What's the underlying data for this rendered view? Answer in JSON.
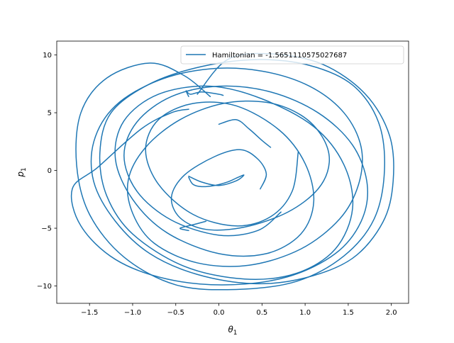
{
  "chart_data": {
    "type": "line",
    "title": "",
    "xlabel": "θ",
    "xlabel_sub": "1",
    "ylabel": "p",
    "ylabel_sub": "1",
    "xlim": [
      -1.88,
      2.2
    ],
    "ylim": [
      -11.5,
      11.2
    ],
    "xticks": [
      -1.5,
      -1.0,
      -0.5,
      0.0,
      0.5,
      1.0,
      1.5,
      2.0
    ],
    "xtick_labels": [
      "−1.5",
      "−1.0",
      "−0.5",
      "0.0",
      "0.5",
      "1.0",
      "1.5",
      "2.0"
    ],
    "yticks": [
      -10,
      -5,
      0,
      5,
      10
    ],
    "ytick_labels": [
      "−10",
      "−5",
      "0",
      "5",
      "10"
    ],
    "grid": false,
    "legend_position": "top-right",
    "series": [
      {
        "name": "Hamiltonian = -1.5651110575027687",
        "color": "#1f77b4",
        "segments": [
          {
            "x": [
              -0.35,
              -0.3,
              -0.2,
              -0.05,
              0.1,
              0.22,
              0.29,
              0.2,
              0.0,
              -0.2,
              -0.35
            ],
            "y": [
              -0.6,
              -1.2,
              -1.4,
              -1.3,
              -1.0,
              -0.6,
              -0.4,
              -0.9,
              -1.3,
              -1.0,
              -0.5
            ]
          },
          {
            "x": [
              0.0,
              0.2,
              0.35,
              0.5,
              0.6
            ],
            "y": [
              4.0,
              4.4,
              3.6,
              2.6,
              2.0
            ]
          },
          {
            "x": [
              -0.1,
              -0.4,
              -0.8,
              -1.3,
              -1.6,
              -1.65,
              -1.5,
              -1.1,
              -0.5,
              0.2,
              0.9,
              1.45,
              1.8,
              1.92,
              1.85,
              1.55,
              1.05,
              0.45,
              -0.2,
              -0.8,
              -1.25,
              -1.38,
              -1.3,
              -1.0,
              -0.4,
              0.3,
              0.9,
              1.35,
              1.55,
              1.45,
              1.1,
              0.5,
              -0.1,
              -0.7,
              -1.1,
              -1.2,
              -1.0,
              -0.6,
              0.0,
              0.55,
              0.95,
              1.1,
              1.0,
              0.7,
              0.2,
              -0.3,
              -0.7,
              -0.85,
              -0.7,
              -0.3,
              0.2,
              0.6,
              0.85,
              0.92
            ],
            "y": [
              6.4,
              8.2,
              9.3,
              8.0,
              5.0,
              0.5,
              -3.8,
              -7.5,
              -9.9,
              -10.3,
              -9.6,
              -7.4,
              -4.2,
              0.0,
              4.2,
              7.4,
              9.1,
              9.6,
              9.0,
              7.5,
              5.0,
              1.5,
              -2.2,
              -5.5,
              -8.3,
              -9.4,
              -8.9,
              -6.8,
              -3.3,
              0.5,
              3.8,
              6.2,
              7.3,
              6.6,
              4.3,
              1.0,
              -2.5,
              -5.4,
              -7.2,
              -7.2,
              -5.5,
              -2.7,
              0.6,
              3.5,
              5.6,
              5.8,
              4.4,
              1.8,
              -1.2,
              -3.8,
              -4.8,
              -4.0,
              -1.8,
              1.6
            ]
          },
          {
            "x": [
              -0.25,
              0.1,
              0.6,
              1.2,
              1.7,
              1.98,
              2.02,
              1.9,
              1.55,
              1.0,
              0.4,
              -0.25,
              -0.8,
              -1.2,
              -1.45,
              -1.45,
              -1.2,
              -0.7,
              -0.1,
              0.5,
              1.05,
              1.45,
              1.65,
              1.62,
              1.4,
              0.95,
              0.35,
              -0.25,
              -0.75,
              -1.0,
              -1.05,
              -0.85,
              -0.45,
              0.05,
              0.55,
              0.95,
              1.2,
              1.28,
              1.15,
              0.8,
              0.3,
              -0.15,
              -0.45,
              -0.55,
              -0.4,
              -0.05,
              0.25,
              0.45,
              0.55,
              0.48
            ],
            "y": [
              6.6,
              9.6,
              10.1,
              9.2,
              6.6,
              3.0,
              -1.0,
              -4.5,
              -7.6,
              -9.3,
              -9.8,
              -9.0,
              -7.2,
              -4.4,
              -1.0,
              2.5,
              5.6,
              7.8,
              8.8,
              8.6,
              7.3,
              5.0,
              2.0,
              -1.2,
              -4.2,
              -6.8,
              -8.2,
              -8.0,
              -6.3,
              -3.7,
              -0.8,
              2.0,
              4.4,
              5.8,
              5.9,
              4.8,
              2.9,
              0.7,
              -1.6,
              -3.6,
              -4.9,
              -5.1,
              -4.1,
              -2.3,
              -0.4,
              1.2,
              1.8,
              1.0,
              -0.3,
              -1.6
            ]
          },
          {
            "x": [
              -0.35,
              -0.55,
              -0.9,
              -1.4,
              -1.7,
              -1.6,
              -1.2,
              -0.6,
              0.1,
              0.8,
              1.35,
              1.65,
              1.72,
              1.55,
              1.15,
              0.6,
              0.0,
              -0.55,
              -0.95,
              -1.1,
              -0.95,
              -0.55,
              0.0,
              0.45,
              0.72
            ],
            "y": [
              5.3,
              5.0,
              3.6,
              0.3,
              -1.6,
              -4.8,
              -7.7,
              -9.4,
              -9.9,
              -9.2,
              -7.2,
              -4.4,
              -1.2,
              2.2,
              5.0,
              6.8,
              7.3,
              6.4,
              4.2,
              1.3,
              -1.8,
              -4.3,
              -5.6,
              -5.2,
              -3.6
            ]
          },
          {
            "x": [
              -0.15,
              -0.3,
              -0.45,
              -0.35
            ],
            "y": [
              -4.4,
              -4.7,
              -5.0,
              -5.2
            ]
          },
          {
            "x": [
              -0.35,
              -0.38,
              -0.33,
              -0.2,
              0.0,
              0.05
            ],
            "y": [
              6.4,
              6.9,
              6.6,
              6.8,
              6.6,
              6.5
            ]
          }
        ]
      }
    ]
  }
}
